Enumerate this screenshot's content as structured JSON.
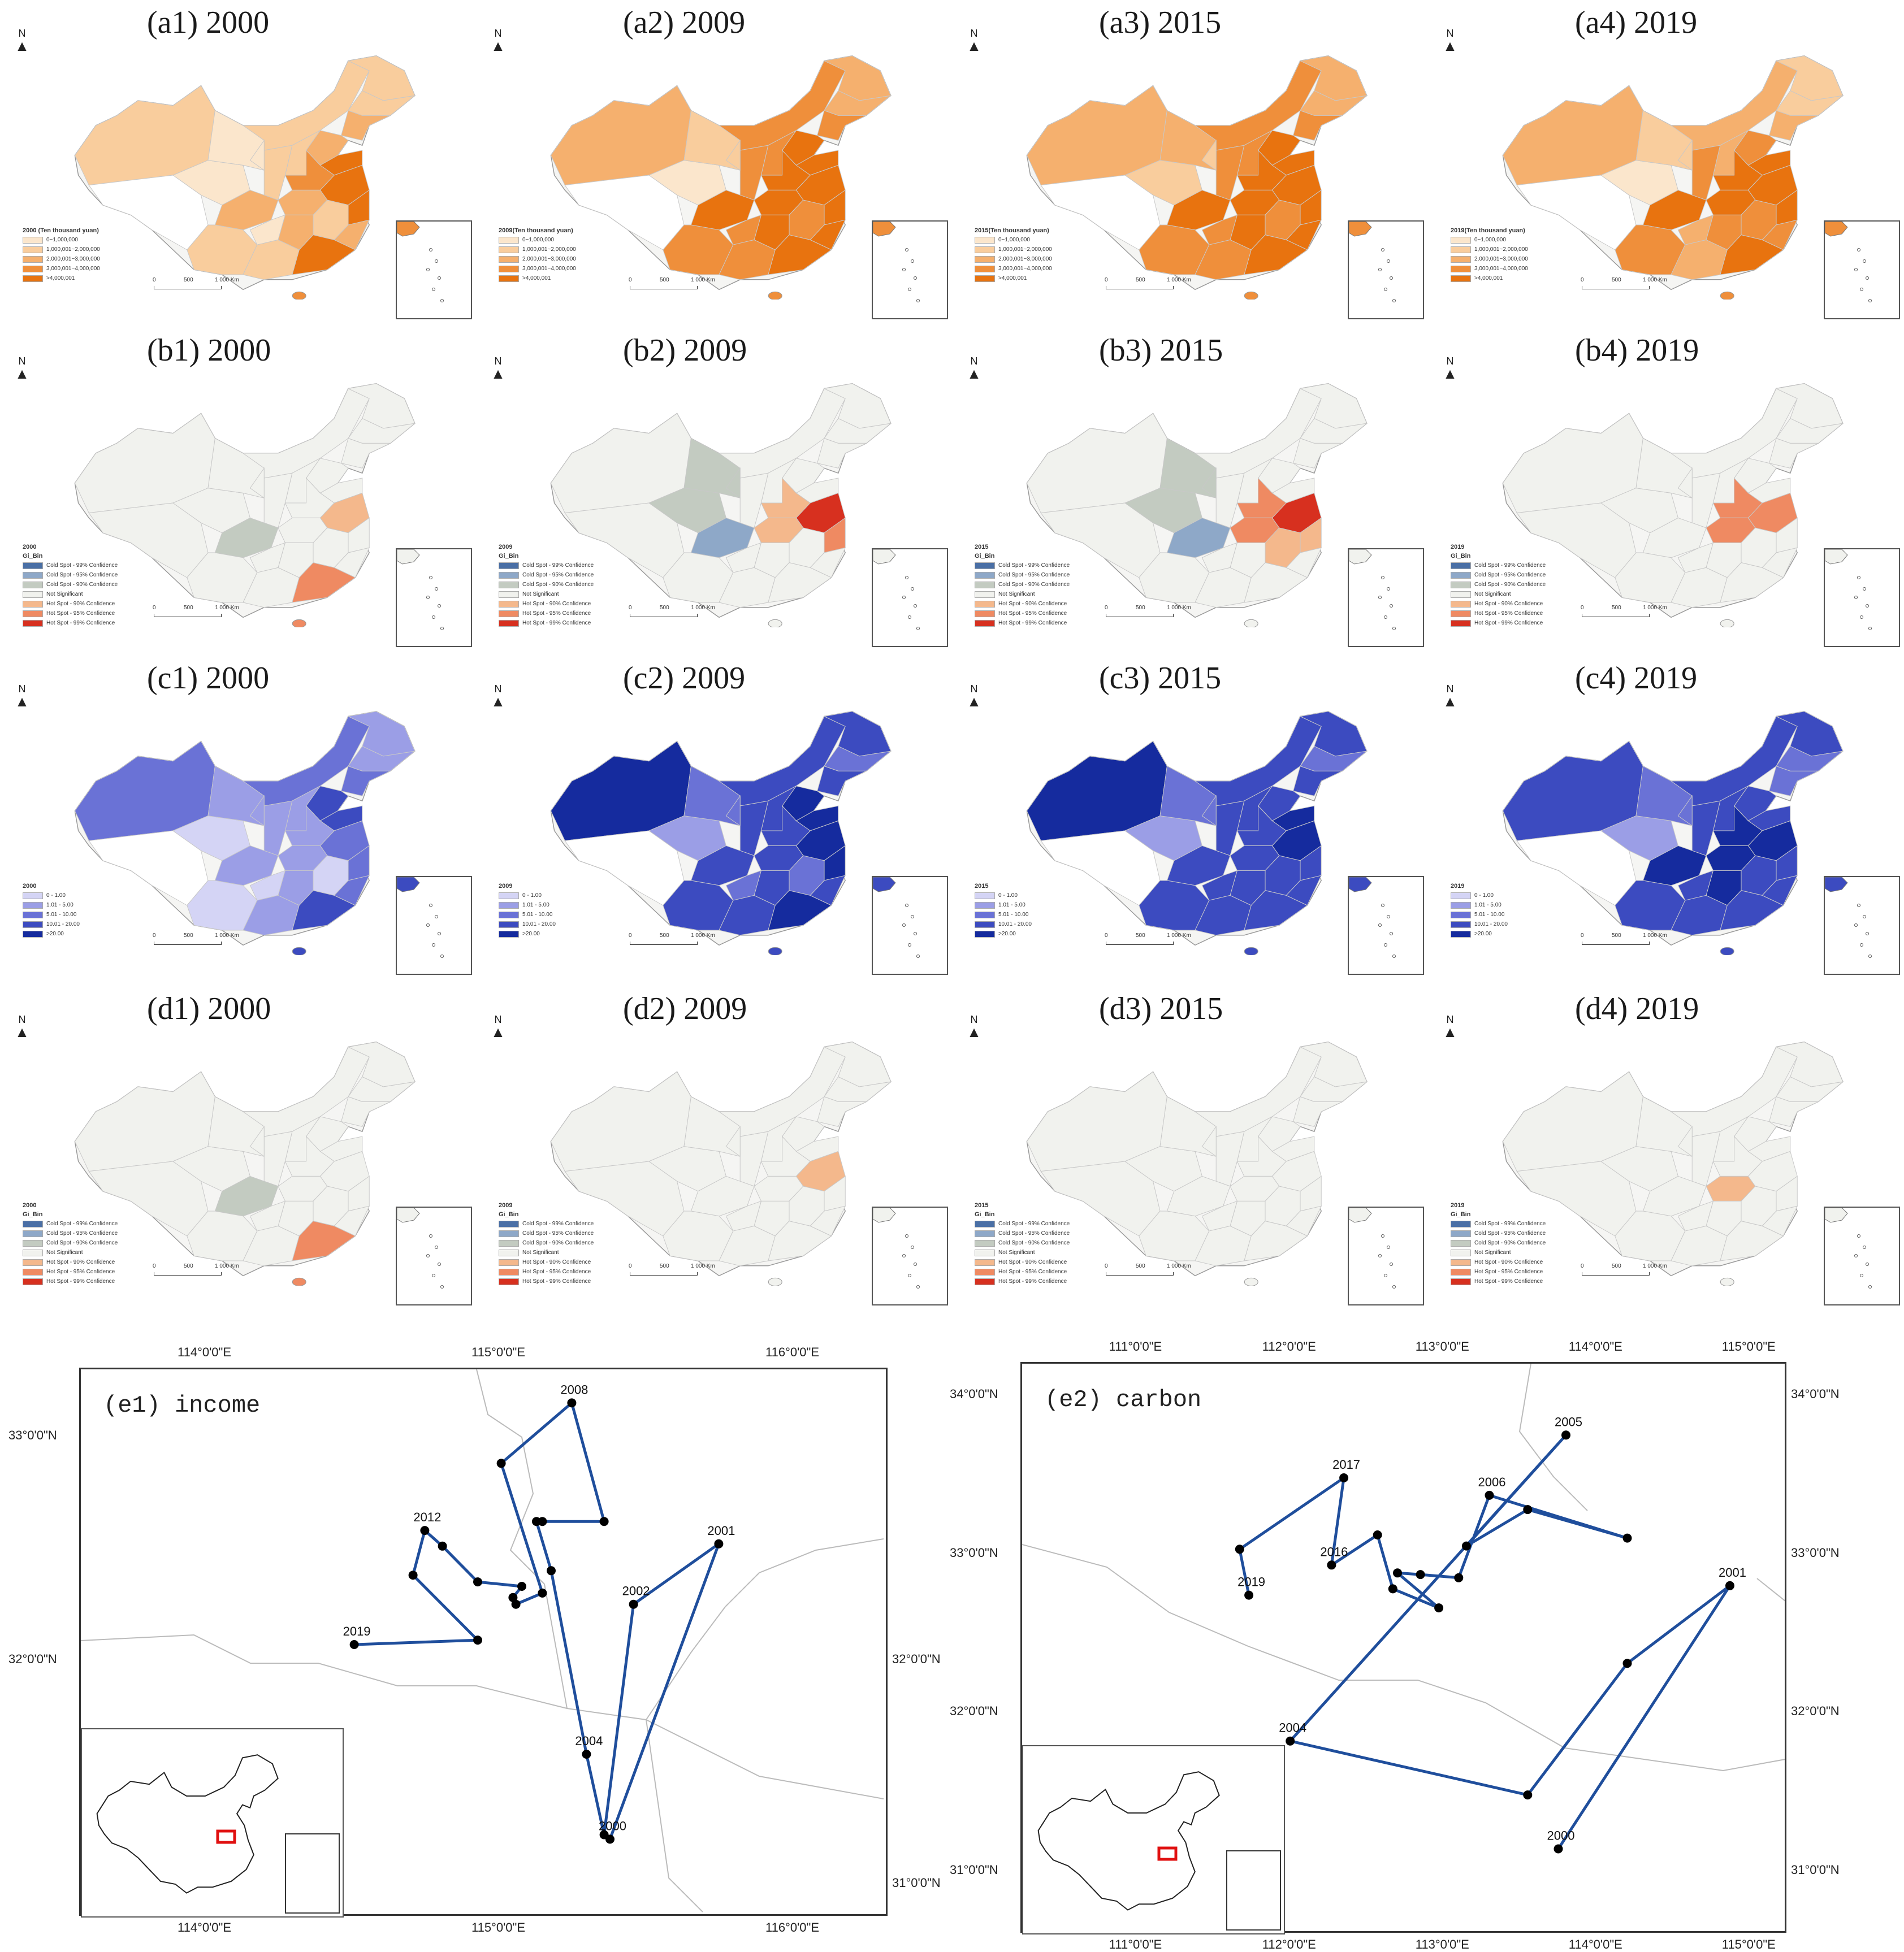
{
  "rows": [
    {
      "id": "a",
      "panels": [
        {
          "title": "(a1) 2000",
          "legend": {
            "title": "2000 (Ten thousand yuan)",
            "items": [
              "0~1,000,000",
              "1,000,001~2,000,000",
              "2,000,001~3,000,000",
              "3,000,001~4,000,000",
              ">4,000,001"
            ]
          }
        },
        {
          "title": "(a2) 2009",
          "legend": {
            "title": "2009(Ten thousand yuan)",
            "items": [
              "0~1,000,000",
              "1,000,001~2,000,000",
              "2,000,001~3,000,000",
              "3,000,001~4,000,000",
              ">4,000,001"
            ]
          }
        },
        {
          "title": "(a3) 2015",
          "legend": {
            "title": "2015(Ten thousand yuan)",
            "items": [
              "0~1,000,000",
              "1,000,001~2,000,000",
              "2,000,001~3,000,000",
              "3,000,001~4,000,000",
              ">4,000,001"
            ]
          }
        },
        {
          "title": "(a4) 2019",
          "legend": {
            "title": "2019(Ten thousand yuan)",
            "items": [
              "0~1,000,000",
              "1,000,001~2,000,000",
              "2,000,001~3,000,000",
              "3,000,001~4,000,000",
              ">4,000,001"
            ]
          }
        }
      ],
      "colors": [
        "#fbe6cc",
        "#f9cd9d",
        "#f5b06e",
        "#ef8f3b",
        "#e8730f"
      ]
    },
    {
      "id": "b",
      "panels": [
        {
          "title": "(b1) 2000",
          "legend": {
            "title": "2000",
            "subtitle": "Gi_Bin",
            "items": [
              "Cold Spot - 99% Confidence",
              "Cold Spot - 95% Confidence",
              "Cold Spot - 90% Confidence",
              "Not Significant",
              "Hot Spot - 90% Confidence",
              "Hot Spot - 95% Confidence",
              "Hot Spot - 99% Confidence"
            ]
          }
        },
        {
          "title": "(b2) 2009",
          "legend": {
            "title": "2009",
            "subtitle": "Gi_Bin",
            "items": [
              "Cold Spot - 99% Confidence",
              "Cold Spot - 95% Confidence",
              "Cold Spot - 90% Confidence",
              "Not Significant",
              "Hot Spot - 90% Confidence",
              "Hot Spot - 95% Confidence",
              "Hot Spot - 99% Confidence"
            ]
          }
        },
        {
          "title": "(b3) 2015",
          "legend": {
            "title": "2015",
            "subtitle": "Gi_Bin",
            "items": [
              "Cold Spot - 99% Confidence",
              "Cold Spot - 95% Confidence",
              "Cold Spot - 90% Confidence",
              "Not Significant",
              "Hot Spot - 90% Confidence",
              "Hot Spot - 95% Confidence",
              "Hot Spot - 99% Confidence"
            ]
          }
        },
        {
          "title": "(b4) 2019",
          "legend": {
            "title": "2019",
            "subtitle": "Gi_Bin",
            "items": [
              "Cold Spot - 99% Confidence",
              "Cold Spot - 95% Confidence",
              "Cold Spot - 90% Confidence",
              "Not Significant",
              "Hot Spot - 90% Confidence",
              "Hot Spot - 95% Confidence",
              "Hot Spot - 99% Confidence"
            ]
          }
        }
      ],
      "colors": [
        "#4a6fa5",
        "#8ea8c8",
        "#c3cbc1",
        "#f1f2ee",
        "#f4b88c",
        "#ef8a62",
        "#d7301f"
      ]
    },
    {
      "id": "c",
      "panels": [
        {
          "title": "(c1) 2000",
          "legend": {
            "title": "2000",
            "items": [
              "0 - 1.00",
              "1.01 - 5.00",
              "5.01 - 10.00",
              "10.01 - 20.00",
              ">20.00"
            ]
          }
        },
        {
          "title": "(c2) 2009",
          "legend": {
            "title": "2009",
            "items": [
              "0 - 1.00",
              "1.01 - 5.00",
              "5.01 - 10.00",
              "10.01 - 20.00",
              ">20.00"
            ]
          }
        },
        {
          "title": "(c3) 2015",
          "legend": {
            "title": "2015",
            "items": [
              "0 - 1.00",
              "1.01 - 5.00",
              "5.01 - 10.00",
              "10.01 - 20.00",
              ">20.00"
            ]
          }
        },
        {
          "title": "(c4) 2019",
          "legend": {
            "title": "2019",
            "items": [
              "0 - 1.00",
              "1.01 - 5.00",
              "5.01 - 10.00",
              "10.01 - 20.00",
              ">20.00"
            ]
          }
        }
      ],
      "colors": [
        "#d4d4f5",
        "#9b9ee6",
        "#6a72d6",
        "#3c4bc0",
        "#152b9e"
      ]
    },
    {
      "id": "d",
      "panels": [
        {
          "title": "(d1) 2000",
          "legend": {
            "title": "2000",
            "subtitle": "Gi_Bin",
            "items": [
              "Cold Spot - 99% Confidence",
              "Cold Spot - 95% Confidence",
              "Cold Spot - 90% Confidence",
              "Not Significant",
              "Hot Spot - 90% Confidence",
              "Hot Spot - 95% Confidence",
              "Hot Spot - 99% Confidence"
            ]
          }
        },
        {
          "title": "(d2) 2009",
          "legend": {
            "title": "2009",
            "subtitle": "Gi_Bin",
            "items": [
              "Cold Spot - 99% Confidence",
              "Cold Spot - 95% Confidence",
              "Cold Spot - 90% Confidence",
              "Not Significant",
              "Hot Spot - 90% Confidence",
              "Hot Spot - 95% Confidence",
              "Hot Spot - 99% Confidence"
            ]
          }
        },
        {
          "title": "(d3) 2015",
          "legend": {
            "title": "2015",
            "subtitle": "Gi_Bin",
            "items": [
              "Cold Spot - 99% Confidence",
              "Cold Spot - 95% Confidence",
              "Cold Spot - 90% Confidence",
              "Not Significant",
              "Hot Spot - 90% Confidence",
              "Hot Spot - 95% Confidence",
              "Hot Spot - 99% Confidence"
            ]
          }
        },
        {
          "title": "(d4) 2019",
          "legend": {
            "title": "2019",
            "subtitle": "Gi_Bin",
            "items": [
              "Cold Spot - 99% Confidence",
              "Cold Spot - 95% Confidence",
              "Cold Spot - 90% Confidence",
              "Not Significant",
              "Hot Spot - 90% Confidence",
              "Hot Spot - 95% Confidence",
              "Hot Spot - 99% Confidence"
            ]
          }
        }
      ],
      "colors": [
        "#4a6fa5",
        "#8ea8c8",
        "#c3cbc1",
        "#f1f2ee",
        "#f4b88c",
        "#ef8a62",
        "#d7301f"
      ]
    }
  ],
  "north_label": "N",
  "scale_labels": [
    "0",
    "500",
    "1 000 Km"
  ],
  "trajectory_panels": [
    {
      "title": "(e1) income",
      "top_ticks": [
        "114°0'0\"E",
        "115°0'0\"E",
        "116°0'0\"E"
      ],
      "bottom_ticks": [
        "114°0'0\"E",
        "115°0'0\"E",
        "116°0'0\"E"
      ],
      "left_ticks": [
        "33°0'0\"N",
        "32°0'0\"N"
      ],
      "right_ticks": [
        "32°0'0\"N",
        "31°0'0\"N"
      ],
      "line_color": "#1f4e9c",
      "points": [
        {
          "lon": 115.35,
          "lat": 31.2,
          "label": "2000"
        },
        {
          "lon": 115.72,
          "lat": 32.52,
          "label": "2001"
        },
        {
          "lon": 115.43,
          "lat": 32.25,
          "label": "2002"
        },
        {
          "lon": 115.33,
          "lat": 31.22,
          "label": ""
        },
        {
          "lon": 115.27,
          "lat": 31.58,
          "label": "2004"
        },
        {
          "lon": 115.15,
          "lat": 32.4,
          "label": ""
        },
        {
          "lon": 115.1,
          "lat": 32.62,
          "label": ""
        },
        {
          "lon": 115.12,
          "lat": 32.62,
          "label": ""
        },
        {
          "lon": 115.33,
          "lat": 32.62,
          "label": ""
        },
        {
          "lon": 115.22,
          "lat": 33.15,
          "label": "2008"
        },
        {
          "lon": 114.98,
          "lat": 32.88,
          "label": ""
        },
        {
          "lon": 115.12,
          "lat": 32.3,
          "label": ""
        },
        {
          "lon": 115.03,
          "lat": 32.25,
          "label": ""
        },
        {
          "lon": 115.02,
          "lat": 32.28,
          "label": ""
        },
        {
          "lon": 115.05,
          "lat": 32.33,
          "label": ""
        },
        {
          "lon": 114.9,
          "lat": 32.35,
          "label": ""
        },
        {
          "lon": 114.78,
          "lat": 32.51,
          "label": ""
        },
        {
          "lon": 114.72,
          "lat": 32.58,
          "label": "2012"
        },
        {
          "lon": 114.68,
          "lat": 32.38,
          "label": ""
        },
        {
          "lon": 114.9,
          "lat": 32.09,
          "label": ""
        },
        {
          "lon": 114.48,
          "lat": 32.07,
          "label": "2019"
        }
      ]
    },
    {
      "title": "(e2) carbon",
      "top_ticks": [
        "111°0'0\"E",
        "112°0'0\"E",
        "113°0'0\"E",
        "114°0'0\"E",
        "115°0'0\"E"
      ],
      "bottom_ticks": [
        "111°0'0\"E",
        "112°0'0\"E",
        "113°0'0\"E",
        "114°0'0\"E",
        "115°0'0\"E"
      ],
      "left_ticks": [
        "34°0'0\"N",
        "33°0'0\"N",
        "32°0'0\"N",
        "31°0'0\"N"
      ],
      "right_ticks": [
        "34°0'0\"N",
        "33°0'0\"N",
        "32°0'0\"N",
        "31°0'0\"N"
      ],
      "line_color": "#1f4e9c",
      "points": [
        {
          "lon": 113.7,
          "lat": 31.14,
          "label": "2000"
        },
        {
          "lon": 114.82,
          "lat": 32.8,
          "label": "2001"
        },
        {
          "lon": 114.15,
          "lat": 32.31,
          "label": ""
        },
        {
          "lon": 113.5,
          "lat": 31.48,
          "label": ""
        },
        {
          "lon": 111.95,
          "lat": 31.82,
          "label": "2004"
        },
        {
          "lon": 113.75,
          "lat": 33.75,
          "label": "2005"
        },
        {
          "lon": 113.1,
          "lat": 33.05,
          "label": ""
        },
        {
          "lon": 113.5,
          "lat": 33.28,
          "label": ""
        },
        {
          "lon": 114.15,
          "lat": 33.1,
          "label": ""
        },
        {
          "lon": 113.25,
          "lat": 33.37,
          "label": "2006"
        },
        {
          "lon": 113.05,
          "lat": 32.85,
          "label": ""
        },
        {
          "lon": 112.8,
          "lat": 32.87,
          "label": ""
        },
        {
          "lon": 112.65,
          "lat": 32.88,
          "label": ""
        },
        {
          "lon": 112.92,
          "lat": 32.66,
          "label": ""
        },
        {
          "lon": 112.62,
          "lat": 32.78,
          "label": ""
        },
        {
          "lon": 112.52,
          "lat": 33.12,
          "label": ""
        },
        {
          "lon": 112.22,
          "lat": 32.93,
          "label": "2016"
        },
        {
          "lon": 112.3,
          "lat": 33.48,
          "label": "2017"
        },
        {
          "lon": 111.62,
          "lat": 33.03,
          "label": ""
        },
        {
          "lon": 111.68,
          "lat": 32.74,
          "label": "2019"
        }
      ]
    }
  ]
}
